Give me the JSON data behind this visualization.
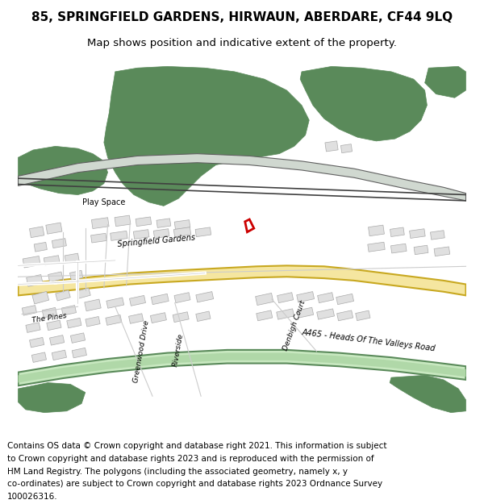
{
  "title_line1": "85, SPRINGFIELD GARDENS, HIRWAUN, ABERDARE, CF44 9LQ",
  "title_line2": "Map shows position and indicative extent of the property.",
  "footer": "Contains OS data © Crown copyright and database right 2021. This information is subject to Crown copyright and database rights 2023 and is reproduced with the permission of HM Land Registry. The polygons (including the associated geometry, namely x, y co-ordinates) are subject to Crown copyright and database rights 2023 Ordnance Survey 100026316.",
  "map_bg": "#ffffff",
  "green_fill": "#5a8a5a",
  "light_green": "#a8c8a8",
  "road_yellow": "#f5e6a0",
  "road_yellow_border": "#e8c840",
  "road_green_fill": "#c8e8c8",
  "road_green_border": "#5a8a5a",
  "building_fill": "#e8e8e8",
  "building_stroke": "#b0b0b0",
  "railway_dark": "#404040",
  "red_plot": "#cc0000",
  "title_fontsize": 11,
  "footer_fontsize": 7.5
}
